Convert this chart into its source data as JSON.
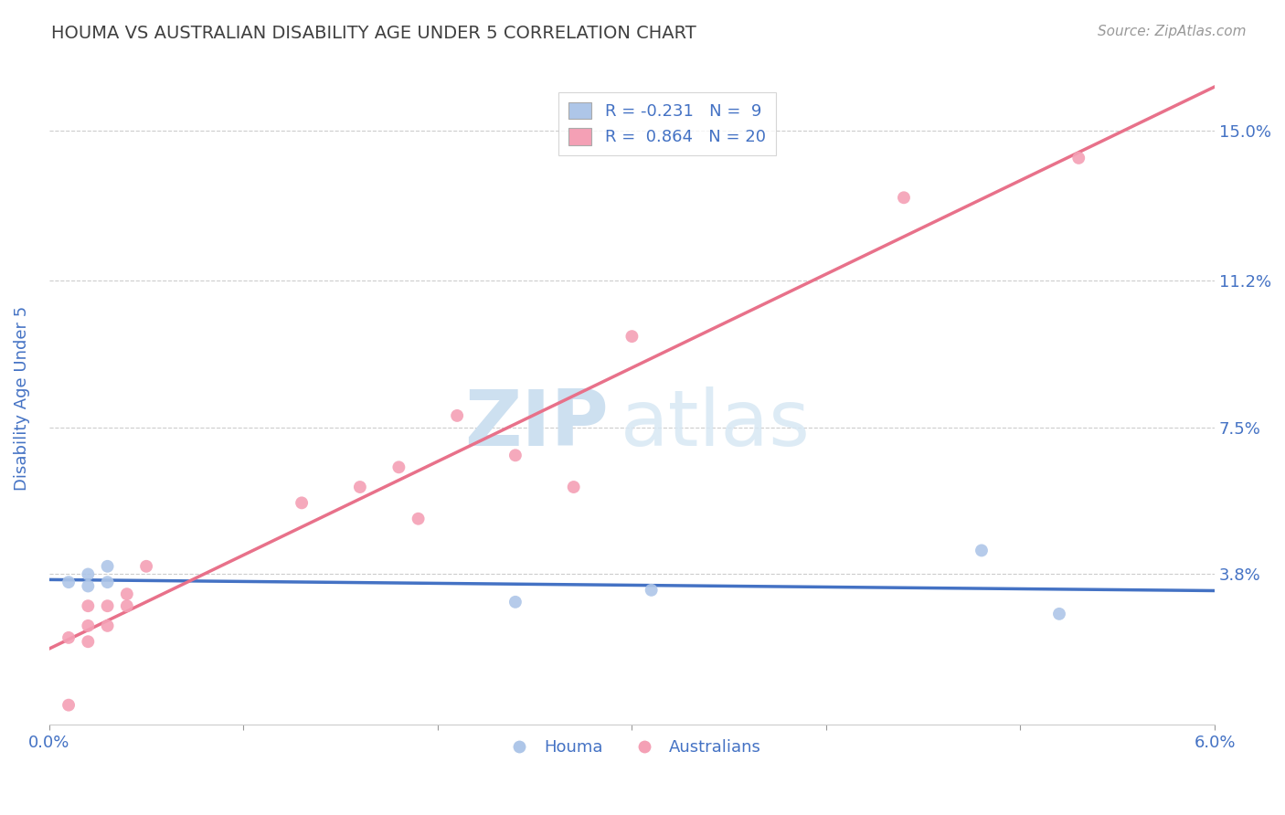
{
  "title": "HOUMA VS AUSTRALIAN DISABILITY AGE UNDER 5 CORRELATION CHART",
  "source": "Source: ZipAtlas.com",
  "xlabel": "",
  "ylabel": "Disability Age Under 5",
  "xlim": [
    0.0,
    0.06
  ],
  "ylim": [
    0.0,
    0.165
  ],
  "ytick_positions": [
    0.038,
    0.075,
    0.112,
    0.15
  ],
  "ytick_labels": [
    "3.8%",
    "7.5%",
    "11.2%",
    "15.0%"
  ],
  "houma_color": "#aec6e8",
  "australians_color": "#f4a0b5",
  "houma_line_color": "#4472c4",
  "australians_line_color": "#e8718a",
  "legend_R_houma": "R = -0.231",
  "legend_N_houma": "N =  9",
  "legend_R_australians": "R =  0.864",
  "legend_N_australians": "N = 20",
  "houma_x": [
    0.001,
    0.002,
    0.002,
    0.003,
    0.003,
    0.024,
    0.031,
    0.048,
    0.052
  ],
  "houma_y": [
    0.036,
    0.038,
    0.035,
    0.04,
    0.036,
    0.031,
    0.034,
    0.044,
    0.028
  ],
  "australians_x": [
    0.001,
    0.001,
    0.002,
    0.002,
    0.002,
    0.003,
    0.003,
    0.004,
    0.004,
    0.005,
    0.013,
    0.016,
    0.018,
    0.019,
    0.021,
    0.024,
    0.027,
    0.03,
    0.044,
    0.053
  ],
  "australians_y": [
    0.005,
    0.022,
    0.021,
    0.025,
    0.03,
    0.025,
    0.03,
    0.03,
    0.033,
    0.04,
    0.056,
    0.06,
    0.065,
    0.052,
    0.078,
    0.068,
    0.06,
    0.098,
    0.133,
    0.143
  ],
  "watermark_zip": "ZIP",
  "watermark_atlas": "atlas",
  "background_color": "#ffffff",
  "grid_color": "#cccccc",
  "title_color": "#404040",
  "axis_label_color": "#4472c4",
  "tick_label_color": "#4472c4"
}
